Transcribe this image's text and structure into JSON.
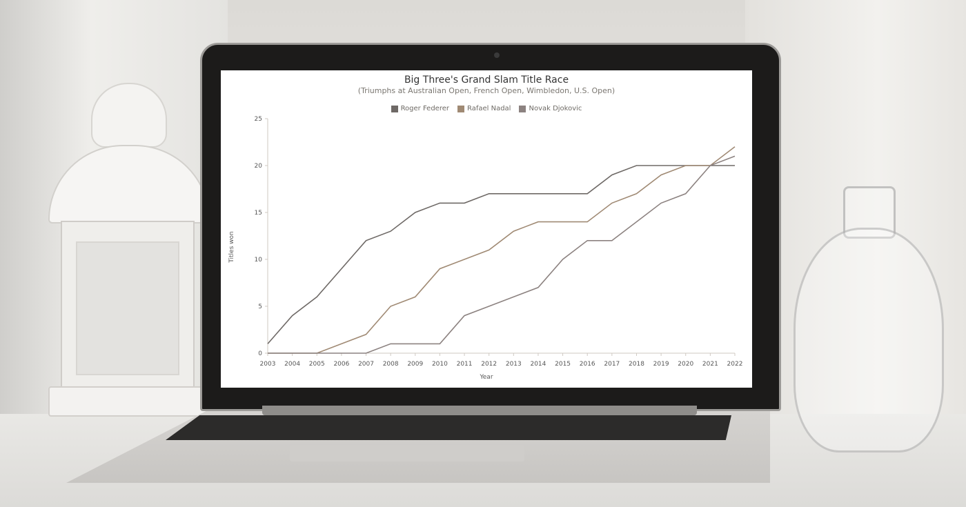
{
  "chart_data": {
    "type": "line",
    "title": "Big Three's Grand Slam Title Race",
    "subtitle": "(Triumphs at Australian Open, French Open, Wimbledon, U.S. Open)",
    "xlabel": "Year",
    "ylabel": "Titles won",
    "ylim": [
      0,
      25
    ],
    "yticks": [
      0,
      5,
      10,
      15,
      20,
      25
    ],
    "categories": [
      "2003",
      "2004",
      "2005",
      "2006",
      "2007",
      "2008",
      "2009",
      "2010",
      "2011",
      "2012",
      "2013",
      "2014",
      "2015",
      "2016",
      "2017",
      "2018",
      "2019",
      "2020",
      "2021",
      "2022"
    ],
    "grid": false,
    "legend_position": "top",
    "series": [
      {
        "name": "Roger Federer",
        "color": "#6e6966",
        "values": [
          1,
          4,
          6,
          9,
          12,
          13,
          15,
          16,
          16,
          17,
          17,
          17,
          17,
          17,
          19,
          20,
          20,
          20,
          20,
          20
        ]
      },
      {
        "name": "Rafael Nadal",
        "color": "#a08a74",
        "values": [
          0,
          0,
          0,
          1,
          2,
          5,
          6,
          9,
          10,
          11,
          13,
          14,
          14,
          14,
          16,
          17,
          19,
          20,
          20,
          22
        ]
      },
      {
        "name": "Novak Djokovic",
        "color": "#8c8280",
        "values": [
          0,
          0,
          0,
          0,
          0,
          1,
          1,
          1,
          4,
          5,
          6,
          7,
          10,
          12,
          12,
          14,
          16,
          17,
          20,
          21
        ]
      }
    ]
  }
}
